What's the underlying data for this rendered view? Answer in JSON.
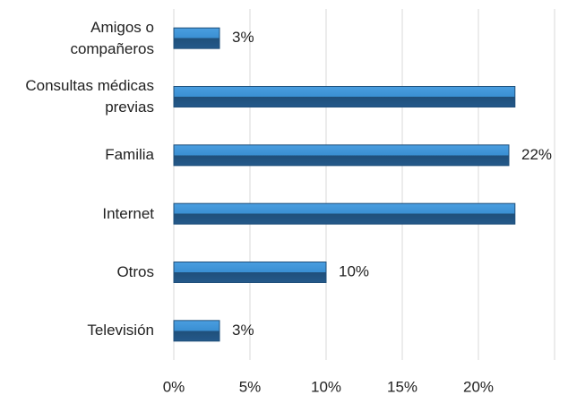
{
  "chart_data": {
    "type": "bar",
    "orientation": "horizontal",
    "categories": [
      "Amigos o compañeros",
      "Consultas médicas previas",
      "Familia",
      "Internet",
      "Otros",
      "Televisión"
    ],
    "values": [
      3,
      22.4,
      22,
      22.4,
      10,
      3
    ],
    "value_labels": [
      "3%",
      null,
      "22%",
      null,
      "10%",
      "3%"
    ],
    "color": "#3a8fd2",
    "xlim": [
      0,
      25
    ],
    "xticks": [
      {
        "value": 0,
        "label": "0%"
      },
      {
        "value": 5,
        "label": "5%"
      },
      {
        "value": 10,
        "label": "10%"
      },
      {
        "value": 15,
        "label": "15%"
      },
      {
        "value": 20,
        "label": "20%"
      }
    ],
    "grid": true
  }
}
